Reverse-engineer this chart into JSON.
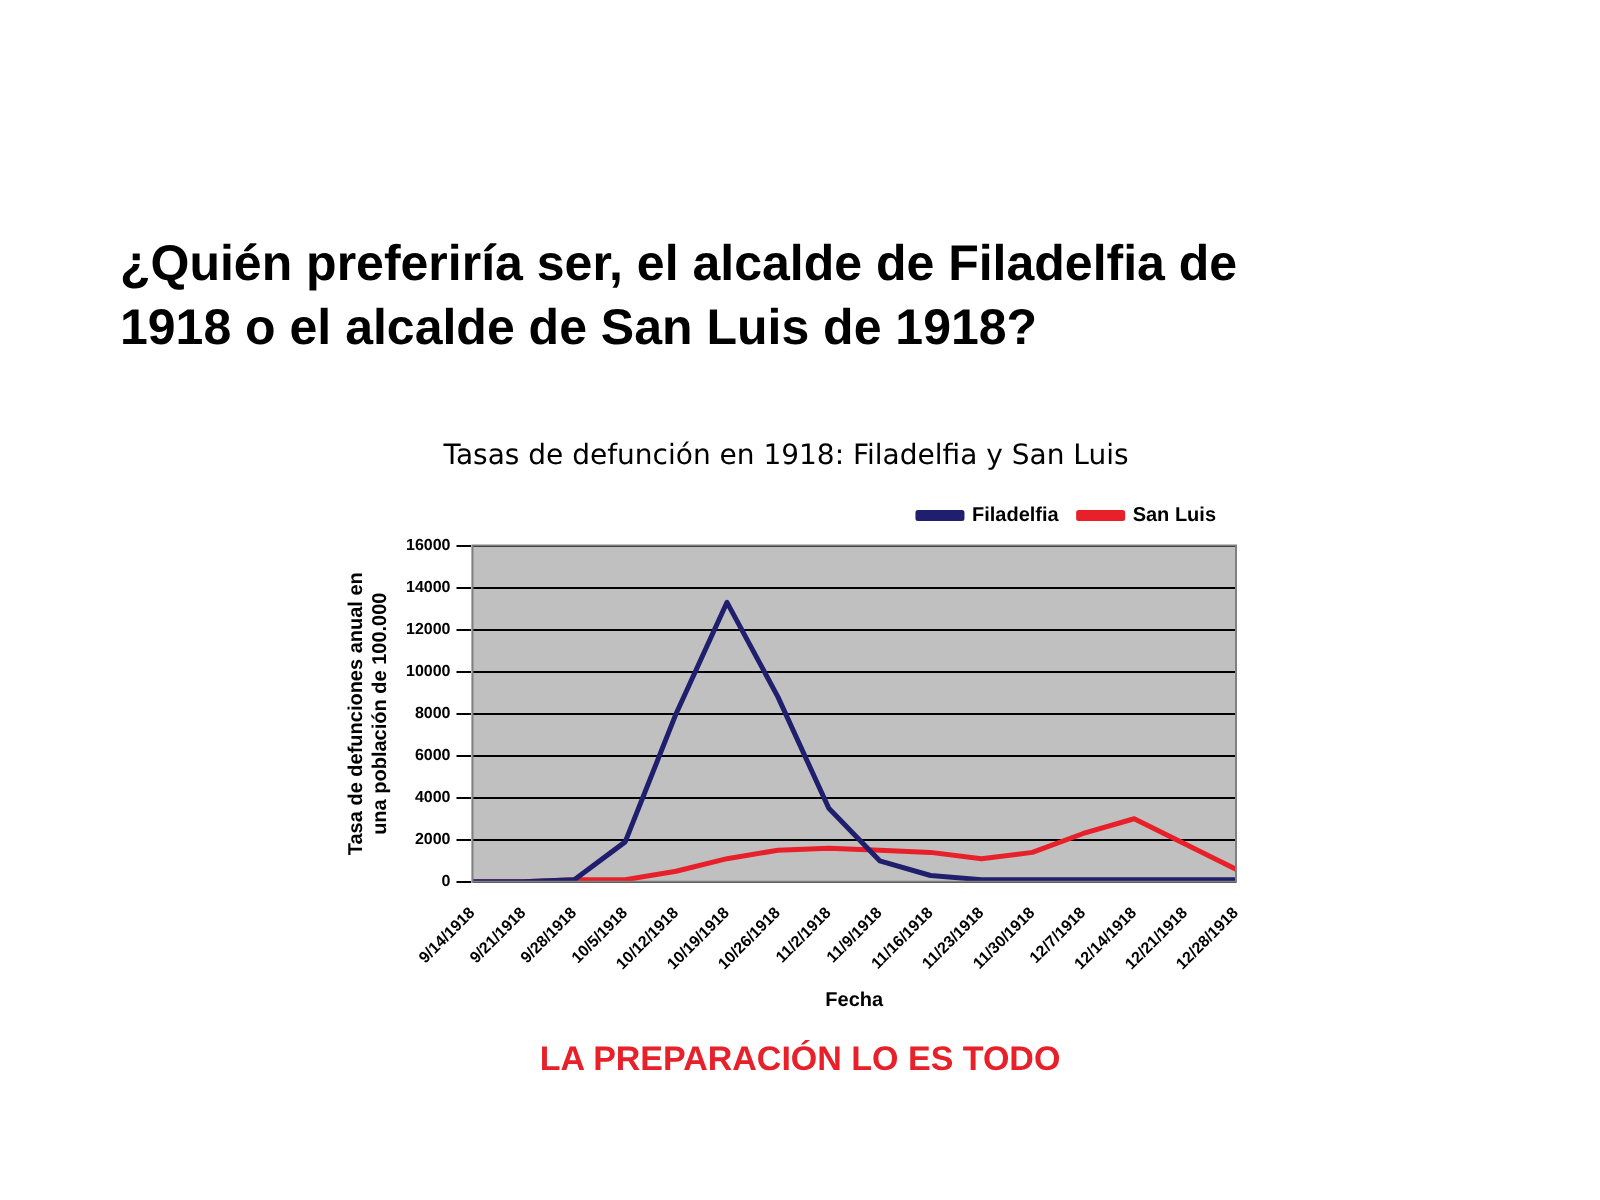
{
  "chart_data": {
    "type": "line",
    "title": "¿Quién preferiría ser, el alcalde de Filadelfia de 1918 o el alcalde de San Luis de 1918?",
    "subtitle": "Tasas de defunción en 1918: Filadelfia y San Luis",
    "xlabel": "Fecha",
    "ylabel": "Tasa de defunciones anual en una población de 100.000",
    "categories": [
      "9/14/1918",
      "9/21/1918",
      "9/28/1918",
      "10/5/1918",
      "10/12/1918",
      "10/19/1918",
      "10/26/1918",
      "11/2/1918",
      "11/9/1918",
      "11/16/1918",
      "11/23/1918",
      "11/30/1918",
      "12/7/1918",
      "12/14/1918",
      "12/21/1918",
      "12/28/1918"
    ],
    "series": [
      {
        "name": "Filadelfia",
        "color": "#1f1f6e",
        "values": [
          0,
          0,
          100,
          1900,
          8000,
          13300,
          8800,
          3500,
          1000,
          300,
          100,
          100,
          100,
          100,
          100,
          100
        ]
      },
      {
        "name": "San Luis",
        "color": "#e8202a",
        "values": [
          0,
          0,
          100,
          100,
          500,
          1100,
          1500,
          1600,
          1500,
          1400,
          1100,
          1400,
          2300,
          3000,
          1800,
          600
        ]
      }
    ],
    "ylim": [
      0,
      16000
    ],
    "yticks": [
      0,
      2000,
      4000,
      6000,
      8000,
      10000,
      12000,
      14000,
      16000
    ],
    "grid": "y",
    "legend": "top right",
    "marker": "none",
    "line_style": "solid",
    "annotations": [
      "LA PREPARACIÓN LO ES TODO"
    ]
  }
}
